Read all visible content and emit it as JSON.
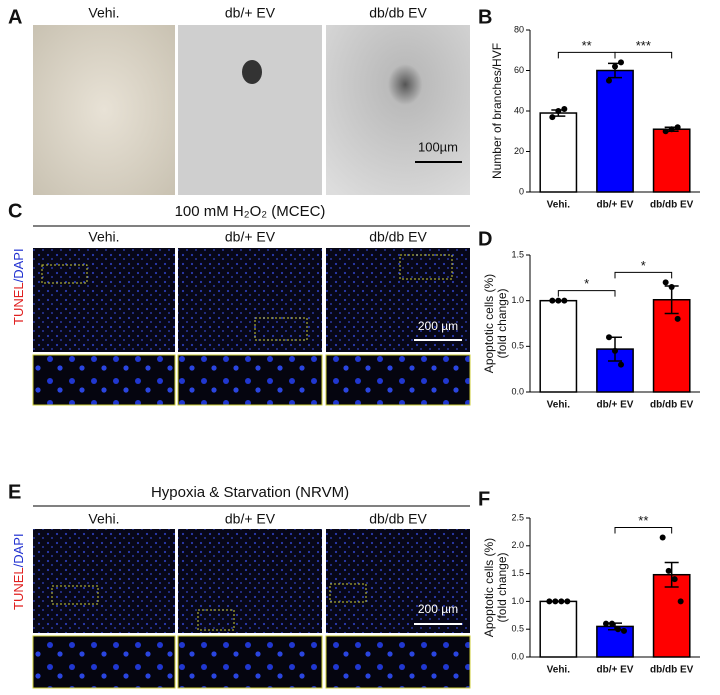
{
  "panels": {
    "A": {
      "label": "A",
      "columns": [
        "Vehi.",
        "db/+ EV",
        "db/db EV"
      ],
      "scale": "100µm"
    },
    "C": {
      "label": "C",
      "header": "100 mM H₂O₂ (MCEC)",
      "columns": [
        "Vehi.",
        "db/+ EV",
        "db/db EV"
      ],
      "scale": "200 µm",
      "side_red": "TUNEL",
      "side_blue": "/DAPI"
    },
    "E": {
      "label": "E",
      "header": "Hypoxia & Starvation (NRVM)",
      "columns": [
        "Vehi.",
        "db/+ EV",
        "db/db EV"
      ],
      "scale": "200 µm",
      "side_red": "TUNEL",
      "side_blue": "/DAPI"
    },
    "B": "B",
    "D": "D",
    "F": "F"
  },
  "chart_data": [
    {
      "type": "bar",
      "ylabel": "Number of branches/HVF",
      "categories": [
        "Vehi.",
        "db/+ EV",
        "db/db EV"
      ],
      "values": [
        39,
        60,
        31
      ],
      "errors": [
        1.5,
        3.5,
        1
      ],
      "colors": [
        "#ffffff",
        "#0000ff",
        "#ff0000"
      ],
      "points": [
        [
          37,
          40,
          41
        ],
        [
          55,
          62,
          64
        ],
        [
          30,
          31,
          32
        ]
      ],
      "ylim": [
        0,
        80
      ],
      "yticks": [
        0,
        20,
        40,
        60,
        80
      ],
      "significance": [
        {
          "from": 0,
          "to": 1,
          "label": "**"
        },
        {
          "from": 1,
          "to": 2,
          "label": "***"
        }
      ]
    },
    {
      "type": "bar",
      "ylabel": "Apoptotic cells (%)",
      "ylabel2": "(fold change)",
      "categories": [
        "Vehi.",
        "db/+ EV",
        "db/db EV"
      ],
      "values": [
        1.0,
        0.47,
        1.01
      ],
      "errors": [
        0,
        0.13,
        0.15
      ],
      "colors": [
        "#ffffff",
        "#0000ff",
        "#ff0000"
      ],
      "points": [
        [
          1,
          1,
          1
        ],
        [
          0.6,
          0.45,
          0.3
        ],
        [
          1.2,
          1.15,
          0.8
        ]
      ],
      "ylim": [
        0,
        1.5
      ],
      "yticks": [
        {
          "value": 0,
          "label": "0.0"
        },
        0.5,
        {
          "value": 1,
          "label": "1.0"
        },
        1.5
      ],
      "significance": [
        {
          "from": 0,
          "to": 1,
          "label": "*"
        },
        {
          "from": 1,
          "to": 2,
          "label": "*"
        }
      ]
    },
    {
      "type": "bar",
      "ylabel": "Apoptotic cells (%)",
      "ylabel2": "(fold change)",
      "categories": [
        "Vehi.",
        "db/+ EV",
        "db/db EV"
      ],
      "values": [
        1.0,
        0.55,
        1.48
      ],
      "errors": [
        0,
        0.06,
        0.22
      ],
      "colors": [
        "#ffffff",
        "#0000ff",
        "#ff0000"
      ],
      "points": [
        [
          1,
          1,
          1,
          1
        ],
        [
          0.6,
          0.6,
          0.5,
          0.47
        ],
        [
          2.15,
          1.55,
          1.4,
          1.0
        ]
      ],
      "ylim": [
        0,
        2.5
      ],
      "yticks": [
        {
          "value": 0,
          "label": "0.0"
        },
        0.5,
        {
          "value": 1,
          "label": "1.0"
        },
        1.5,
        {
          "value": 2,
          "label": "2.0"
        },
        2.5
      ],
      "significance": [
        {
          "from": 1,
          "to": 2,
          "label": "**"
        }
      ]
    }
  ]
}
